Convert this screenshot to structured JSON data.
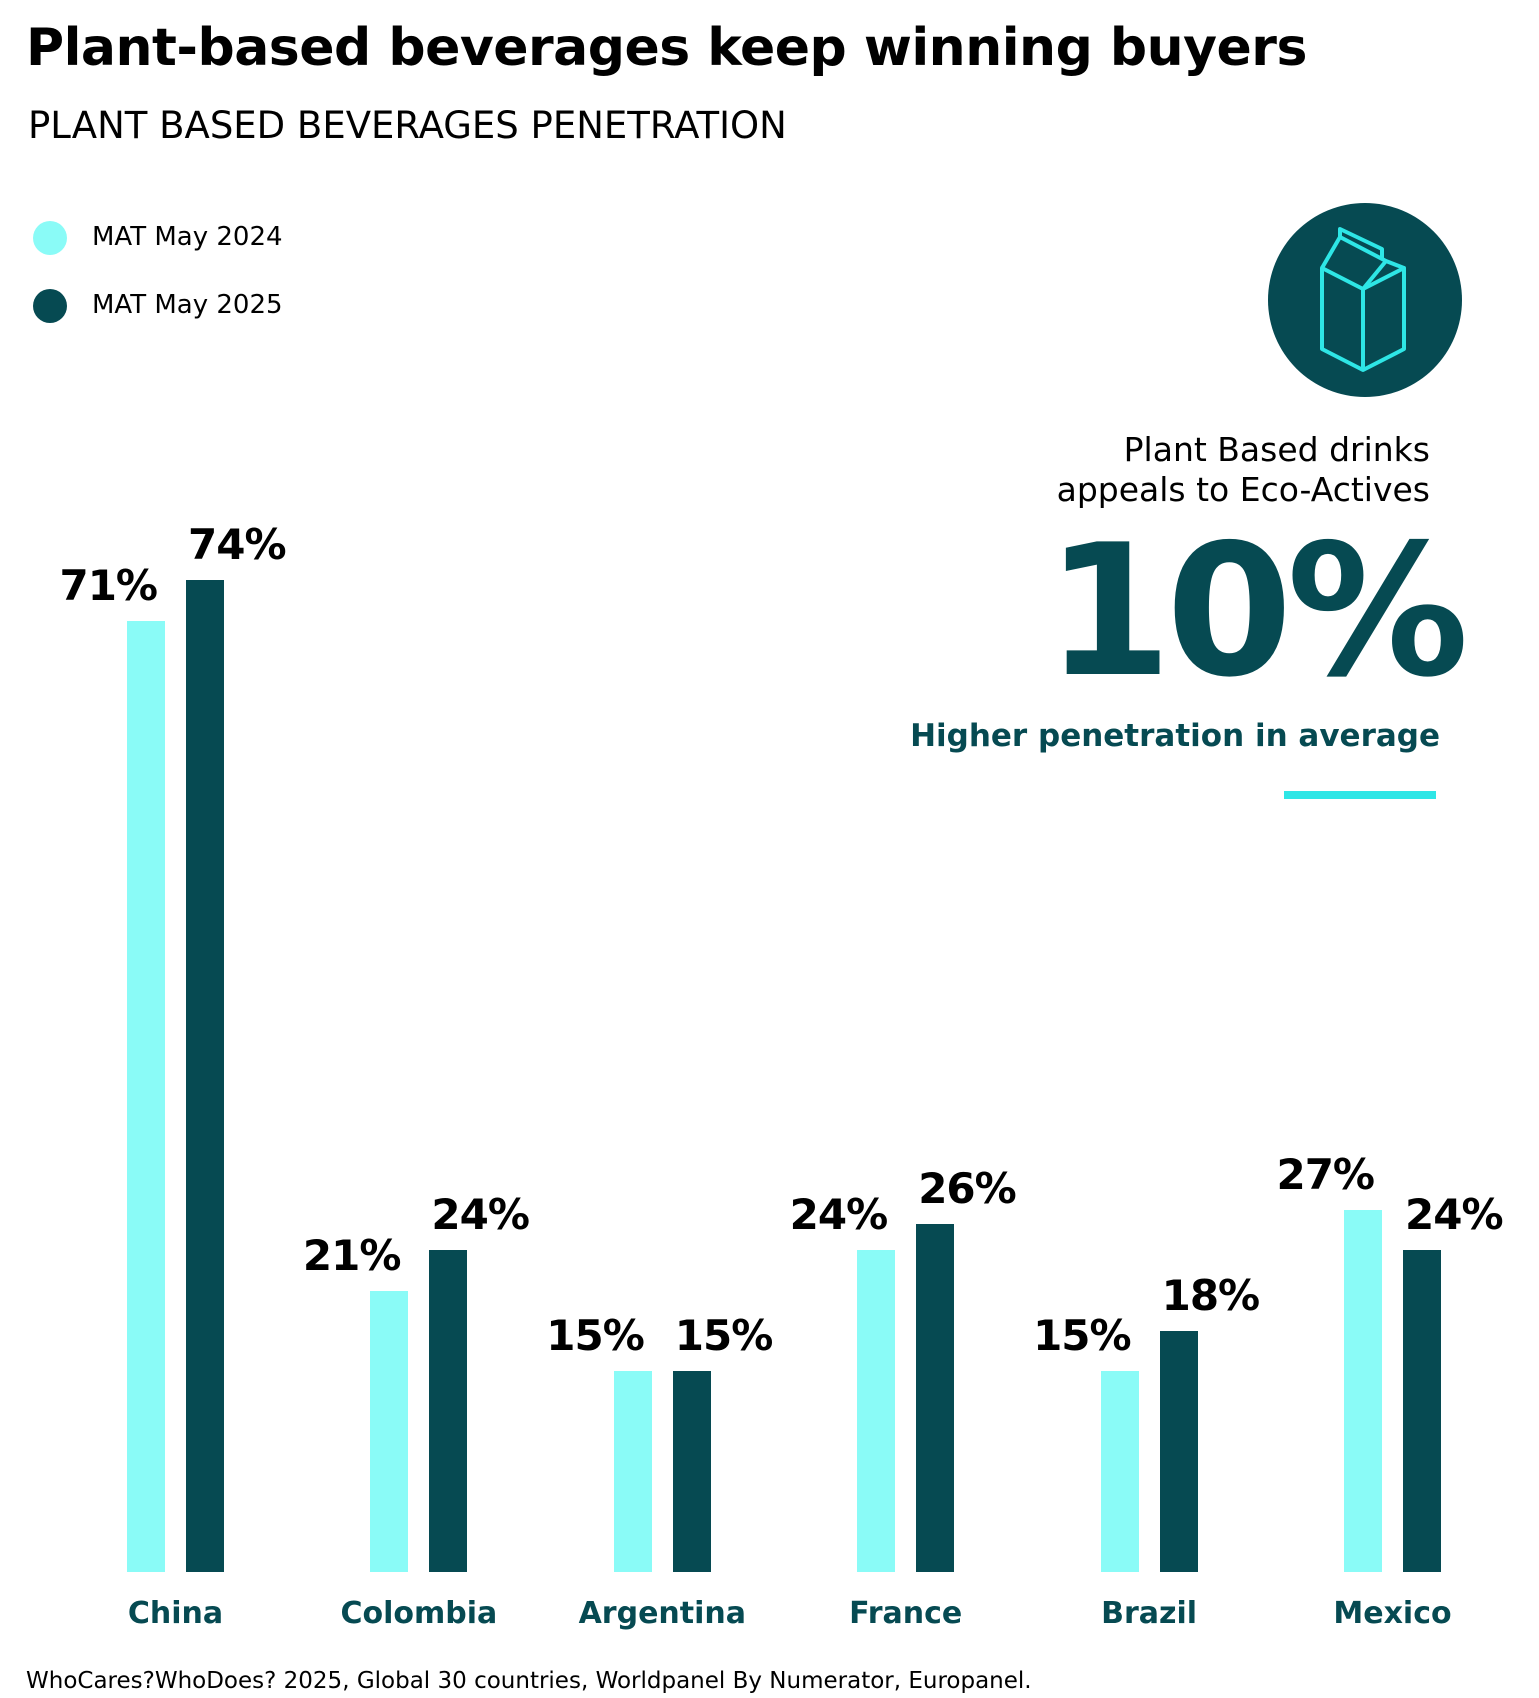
{
  "title": "Plant-based beverages keep winning buyers",
  "subtitle": "PLANT BASED BEVERAGES PENETRATION",
  "colors": {
    "light": "#8AFBF7",
    "dark": "#064A52",
    "accent": "#2EE6E6"
  },
  "callout": {
    "icon": "milk-carton-icon",
    "line1": "Plant Based drinks",
    "line2": "appeals to Eco-Actives",
    "big_value": "10%",
    "caption": "Higher penetration in average"
  },
  "footer": "WhoCares?WhoDoes? 2025, Global 30 countries, Worldpanel By Numerator, Europanel.",
  "chart_data": {
    "type": "bar",
    "title": "PLANT BASED BEVERAGES PENETRATION",
    "categories": [
      "China",
      "Colombia",
      "Argentina",
      "France",
      "Brazil",
      "Mexico"
    ],
    "series": [
      {
        "name": "MAT May 2024",
        "values": [
          71,
          21,
          15,
          24,
          15,
          27
        ],
        "labels": [
          "71%",
          "21%",
          "15%",
          "24%",
          "15%",
          "27%"
        ]
      },
      {
        "name": "MAT May 2025",
        "values": [
          74,
          24,
          15,
          26,
          18,
          24
        ],
        "labels": [
          "74%",
          "24%",
          "15%",
          "26%",
          "18%",
          "24%"
        ]
      }
    ],
    "ylim": [
      0,
      100
    ],
    "grid": false,
    "legend": "top-left",
    "xlabel": "",
    "ylabel": ""
  }
}
